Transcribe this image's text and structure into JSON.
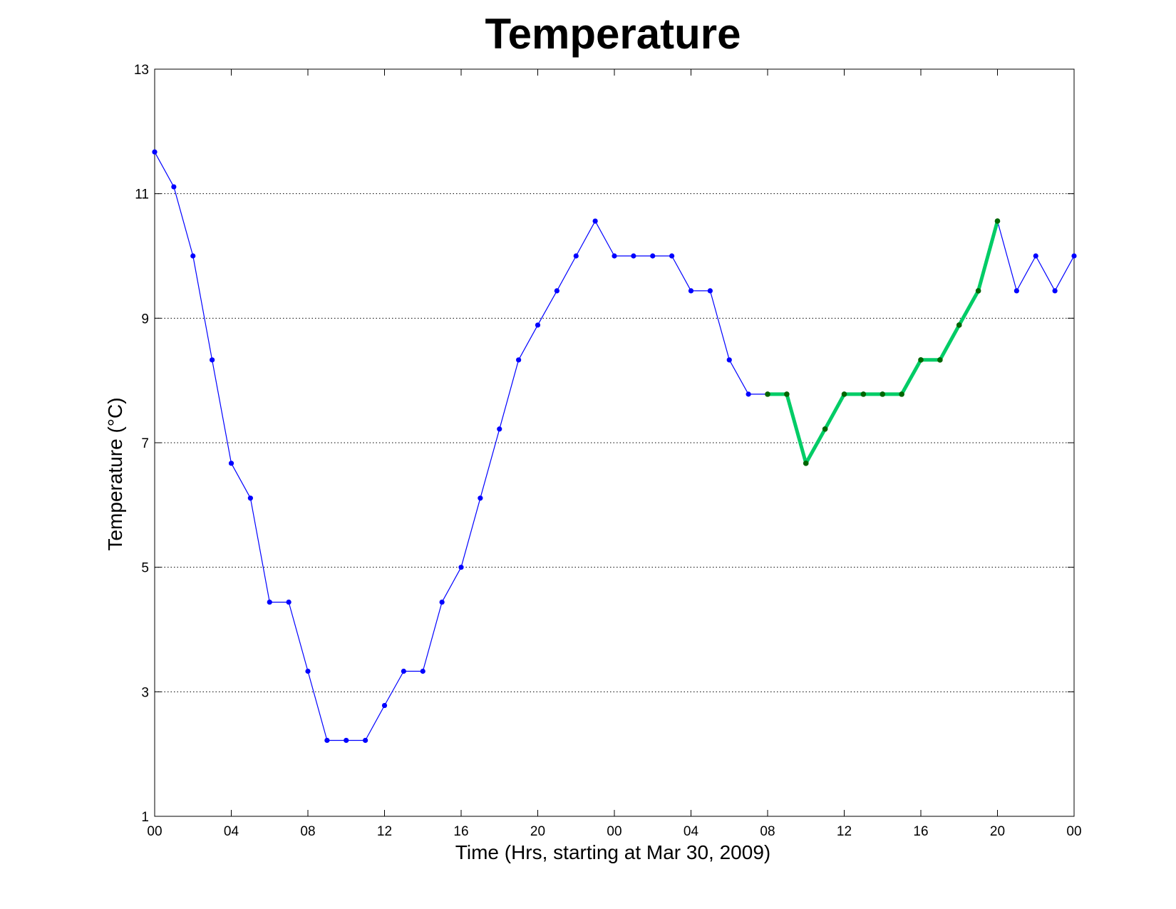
{
  "chart_data": {
    "type": "line",
    "title": "Temperature",
    "xlabel": "Time (Hrs, starting at Mar 30, 2009)",
    "ylabel": "Temperature (°C)",
    "xlim": [
      0,
      48
    ],
    "ylim": [
      1,
      13
    ],
    "x_ticks": [
      0,
      4,
      8,
      12,
      16,
      20,
      24,
      28,
      32,
      36,
      40,
      44,
      48
    ],
    "x_tick_labels": [
      "00",
      "04",
      "08",
      "12",
      "16",
      "20",
      "00",
      "04",
      "08",
      "12",
      "16",
      "20",
      "00"
    ],
    "y_ticks": [
      1,
      3,
      5,
      7,
      9,
      11,
      13
    ],
    "y_tick_labels": [
      "1",
      "3",
      "5",
      "7",
      "9",
      "11",
      "13"
    ],
    "grid": "y-dotted",
    "series": [
      {
        "color": "#0000ff",
        "style": "thin-line-markers",
        "x": [
          0,
          1,
          2,
          3,
          4,
          5,
          6,
          7,
          8,
          9,
          10,
          11,
          12,
          13,
          14,
          15,
          16,
          17,
          18,
          19,
          20,
          21,
          22,
          23,
          24,
          25,
          26,
          27,
          28,
          29,
          30,
          31,
          32,
          33,
          34,
          35,
          36,
          37,
          38,
          39,
          40,
          41,
          42,
          43,
          44,
          45,
          46,
          47,
          48
        ],
        "y": [
          11.67,
          11.11,
          10.0,
          8.33,
          6.67,
          6.11,
          4.44,
          4.44,
          3.33,
          2.22,
          2.22,
          2.22,
          2.78,
          3.33,
          3.33,
          4.44,
          5.0,
          6.11,
          7.22,
          8.33,
          8.89,
          9.44,
          10.0,
          10.56,
          10.0,
          10.0,
          10.0,
          10.0,
          9.44,
          9.44,
          8.33,
          7.78,
          7.78,
          7.78,
          6.67,
          7.22,
          7.78,
          7.78,
          7.78,
          7.78,
          8.33,
          8.33,
          8.89,
          9.44,
          10.56,
          9.44,
          10.0,
          9.44,
          10.0
        ]
      },
      {
        "color": "#00cc66",
        "marker_color": "#006600",
        "style": "thick-line-markers",
        "x": [
          32,
          33,
          34,
          35,
          36,
          37,
          38,
          39,
          40,
          41,
          42,
          43,
          44
        ],
        "y": [
          7.78,
          7.78,
          6.67,
          7.22,
          7.78,
          7.78,
          7.78,
          7.78,
          8.33,
          8.33,
          8.89,
          9.44,
          10.56
        ]
      }
    ]
  }
}
